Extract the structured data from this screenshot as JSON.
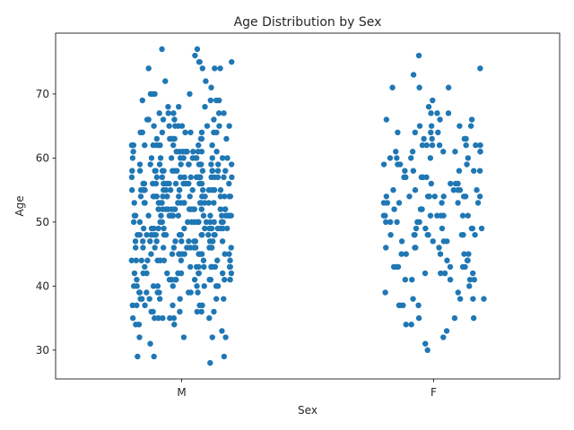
{
  "chart_data": {
    "type": "scatter",
    "subtype": "strip",
    "title": "Age Distribution by Sex",
    "xlabel": "Sex",
    "ylabel": "Age",
    "categories": [
      "M",
      "F"
    ],
    "ylim": [
      25.5,
      79.5
    ],
    "yticks": [
      30,
      40,
      50,
      60,
      70
    ],
    "grid": false,
    "legend": "none",
    "point_color": "#1f77b4",
    "series": [
      {
        "category": "M",
        "values": [
          77,
          77,
          76,
          75,
          75,
          75,
          74,
          74,
          74,
          74,
          72,
          72,
          71,
          70,
          70,
          70,
          70,
          69,
          69,
          69,
          69,
          68,
          68,
          68,
          67,
          67,
          67,
          67,
          67,
          66,
          66,
          66,
          66,
          66,
          65,
          65,
          65,
          65,
          65,
          65,
          65,
          65,
          64,
          64,
          64,
          64,
          64,
          64,
          64,
          64,
          63,
          63,
          63,
          63,
          63,
          63,
          63,
          63,
          63,
          62,
          62,
          62,
          62,
          62,
          62,
          62,
          62,
          62,
          62,
          61,
          61,
          61,
          61,
          61,
          61,
          61,
          61,
          61,
          61,
          60,
          60,
          60,
          60,
          60,
          60,
          60,
          60,
          60,
          60,
          60,
          60,
          59,
          59,
          59,
          59,
          59,
          59,
          59,
          59,
          59,
          59,
          59,
          59,
          58,
          58,
          58,
          58,
          58,
          58,
          58,
          58,
          58,
          58,
          58,
          58,
          58,
          58,
          57,
          57,
          57,
          57,
          57,
          57,
          57,
          57,
          57,
          57,
          57,
          57,
          57,
          57,
          57,
          57,
          56,
          56,
          56,
          56,
          56,
          56,
          56,
          56,
          56,
          56,
          56,
          56,
          56,
          56,
          56,
          56,
          55,
          55,
          55,
          55,
          55,
          55,
          55,
          55,
          55,
          55,
          55,
          55,
          55,
          55,
          55,
          55,
          55,
          54,
          54,
          54,
          54,
          54,
          54,
          54,
          54,
          54,
          54,
          54,
          54,
          54,
          54,
          54,
          54,
          53,
          53,
          53,
          53,
          53,
          53,
          53,
          53,
          53,
          53,
          53,
          53,
          53,
          53,
          53,
          52,
          52,
          52,
          52,
          52,
          52,
          52,
          52,
          52,
          52,
          52,
          52,
          52,
          52,
          52,
          51,
          51,
          51,
          51,
          51,
          51,
          51,
          51,
          51,
          51,
          51,
          51,
          51,
          51,
          51,
          51,
          50,
          50,
          50,
          50,
          50,
          50,
          50,
          50,
          50,
          50,
          50,
          50,
          50,
          50,
          49,
          49,
          49,
          49,
          49,
          49,
          49,
          49,
          49,
          49,
          49,
          49,
          49,
          48,
          48,
          48,
          48,
          48,
          48,
          48,
          48,
          48,
          48,
          48,
          48,
          48,
          48,
          48,
          47,
          47,
          47,
          47,
          47,
          47,
          47,
          47,
          47,
          47,
          47,
          47,
          46,
          46,
          46,
          46,
          46,
          46,
          46,
          46,
          46,
          46,
          46,
          46,
          46,
          45,
          45,
          45,
          45,
          45,
          45,
          45,
          45,
          45,
          45,
          45,
          45,
          44,
          44,
          44,
          44,
          44,
          44,
          44,
          44,
          44,
          44,
          44,
          43,
          43,
          43,
          43,
          43,
          43,
          43,
          43,
          43,
          43,
          43,
          42,
          42,
          42,
          42,
          42,
          42,
          42,
          42,
          42,
          42,
          41,
          41,
          41,
          41,
          41,
          41,
          41,
          41,
          41,
          41,
          40,
          40,
          40,
          40,
          40,
          40,
          40,
          40,
          40,
          39,
          39,
          39,
          39,
          39,
          39,
          39,
          39,
          38,
          38,
          38,
          38,
          38,
          38,
          38,
          38,
          37,
          37,
          37,
          37,
          37,
          37,
          36,
          36,
          36,
          36,
          36,
          36,
          35,
          35,
          35,
          35,
          35,
          35,
          35,
          34,
          34,
          34,
          33,
          32,
          32,
          32,
          32,
          31,
          29,
          29,
          29,
          28
        ]
      },
      {
        "category": "F",
        "values": [
          76,
          74,
          73,
          71,
          71,
          71,
          69,
          68,
          67,
          67,
          67,
          66,
          66,
          66,
          65,
          65,
          65,
          65,
          64,
          64,
          64,
          64,
          63,
          63,
          63,
          63,
          62,
          62,
          62,
          62,
          62,
          62,
          62,
          61,
          61,
          61,
          61,
          61,
          61,
          60,
          60,
          60,
          60,
          60,
          59,
          59,
          59,
          59,
          58,
          58,
          58,
          58,
          58,
          57,
          57,
          57,
          57,
          57,
          56,
          56,
          56,
          56,
          55,
          55,
          55,
          55,
          55,
          55,
          54,
          54,
          54,
          54,
          54,
          54,
          54,
          54,
          54,
          53,
          53,
          53,
          53,
          53,
          53,
          52,
          52,
          52,
          52,
          51,
          51,
          51,
          51,
          51,
          51,
          51,
          51,
          50,
          50,
          50,
          50,
          50,
          49,
          49,
          49,
          49,
          49,
          49,
          48,
          48,
          48,
          48,
          48,
          48,
          48,
          48,
          47,
          47,
          47,
          47,
          46,
          46,
          46,
          46,
          45,
          45,
          45,
          45,
          45,
          44,
          44,
          44,
          43,
          43,
          43,
          43,
          43,
          43,
          42,
          42,
          42,
          42,
          41,
          41,
          41,
          41,
          41,
          40,
          39,
          39,
          38,
          38,
          38,
          38,
          37,
          37,
          37,
          37,
          35,
          35,
          35,
          34,
          34,
          33,
          32,
          31,
          30
        ]
      }
    ]
  }
}
